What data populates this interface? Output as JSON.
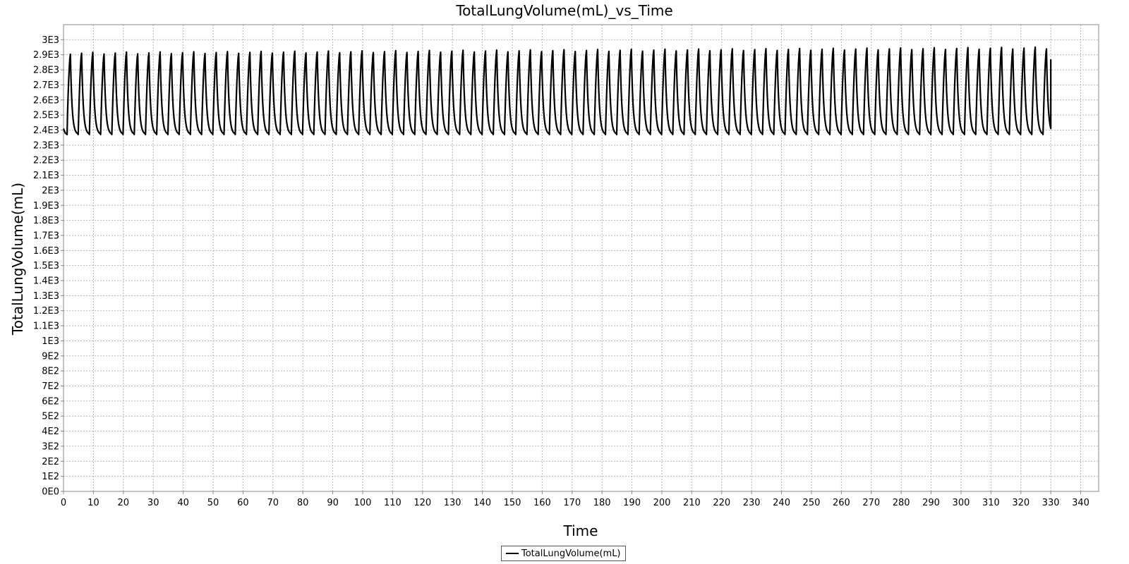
{
  "chart_data": {
    "type": "line",
    "title": "TotalLungVolume(mL)_vs_Time",
    "xlabel": "Time",
    "ylabel": "TotalLungVolume(mL)",
    "xlim": [
      0,
      346
    ],
    "ylim": [
      0,
      3100
    ],
    "x_ticks": [
      0,
      10,
      20,
      30,
      40,
      50,
      60,
      70,
      80,
      90,
      100,
      110,
      120,
      130,
      140,
      150,
      160,
      170,
      180,
      190,
      200,
      210,
      220,
      230,
      240,
      250,
      260,
      270,
      280,
      290,
      300,
      310,
      320,
      330,
      340
    ],
    "x_tick_labels": [
      "0",
      "10",
      "20",
      "30",
      "40",
      "50",
      "60",
      "70",
      "80",
      "90",
      "100",
      "110",
      "120",
      "130",
      "140",
      "150",
      "160",
      "170",
      "180",
      "190",
      "200",
      "210",
      "220",
      "230",
      "240",
      "250",
      "260",
      "270",
      "280",
      "290",
      "300",
      "310",
      "320",
      "330",
      "340"
    ],
    "y_ticks": [
      0,
      100,
      200,
      300,
      400,
      500,
      600,
      700,
      800,
      900,
      1000,
      1100,
      1200,
      1300,
      1400,
      1500,
      1600,
      1700,
      1800,
      1900,
      2000,
      2100,
      2200,
      2300,
      2400,
      2500,
      2600,
      2700,
      2800,
      2900,
      3000
    ],
    "y_tick_labels": [
      "0E0",
      "1E2",
      "2E2",
      "3E2",
      "4E2",
      "5E2",
      "6E2",
      "7E2",
      "8E2",
      "9E2",
      "1E3",
      "1.1E3",
      "1.2E3",
      "1.3E3",
      "1.4E3",
      "1.5E3",
      "1.6E3",
      "1.7E3",
      "1.8E3",
      "1.9E3",
      "2E3",
      "2.1E3",
      "2.2E3",
      "2.3E3",
      "2.4E3",
      "2.5E3",
      "2.6E3",
      "2.7E3",
      "2.8E3",
      "2.9E3",
      "3E3"
    ],
    "grid": true,
    "legend_position": "bottom-center",
    "series": [
      {
        "name": "TotalLungVolume(mL)",
        "color": "#000000",
        "breath_period": 3.75,
        "first_peak_time": 2.3,
        "last_time": 330,
        "min_volume": 2370,
        "peak_volume_start": 2910,
        "peak_volume_end": 2945
      }
    ]
  }
}
